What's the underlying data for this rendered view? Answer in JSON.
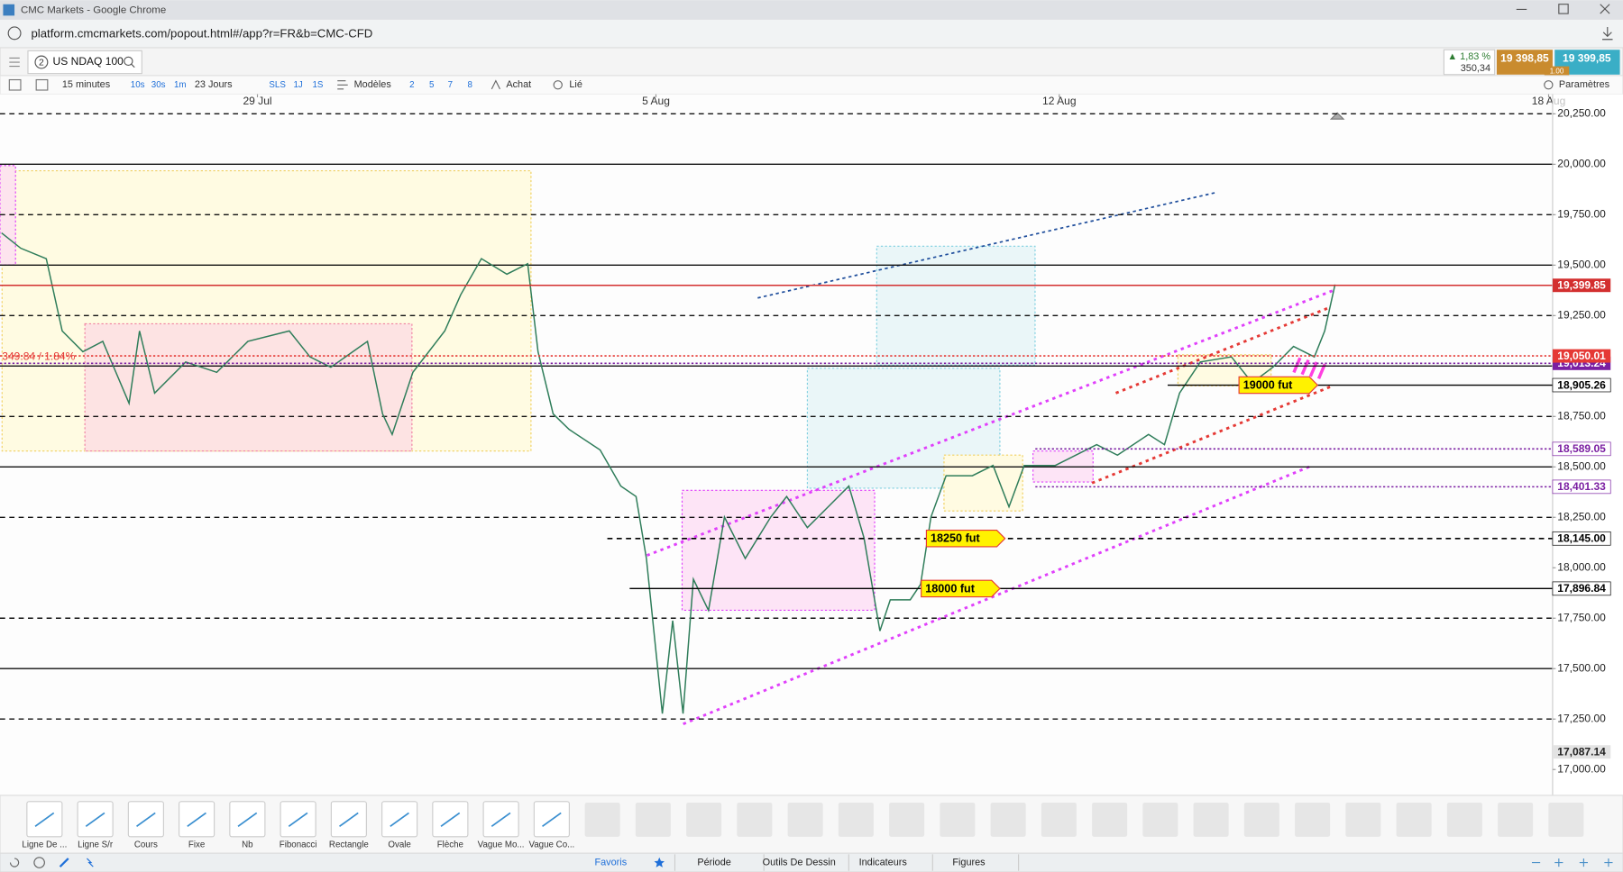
{
  "browser": {
    "title": "CMC Markets - Google Chrome",
    "url": "platform.cmcmarkets.com/popout.html#/app?r=FR&b=CMC-CFD"
  },
  "header": {
    "tab_number": "2",
    "instrument": "US NDAQ 100",
    "change_pct": "▲ 1,83 %",
    "change_abs": "350,34",
    "sell": "19 398,85",
    "buy": "19 399,85",
    "spread": "1.00"
  },
  "toolbar": {
    "interval": "15 minutes",
    "interval_options": [
      "10s",
      "30s",
      "1m"
    ],
    "range": "23 Jours",
    "range_options": [
      "SLS",
      "1J",
      "1S"
    ],
    "templates": "Modèles",
    "layouts": [
      "2",
      "5",
      "7",
      "8"
    ],
    "buy": "Achat",
    "link": "Lié",
    "settings": "Paramètres"
  },
  "chart_data": {
    "type": "line",
    "color": "#2f7d5a",
    "xlim": [
      -3.23,
      16.25
    ],
    "ylim": [
      16877,
      20342
    ],
    "xticks": [
      {
        "value": 0,
        "label": "29 Jul"
      },
      {
        "value": 5,
        "label": "5 Aug"
      },
      {
        "value": 10.06,
        "label": "12 Aug"
      },
      {
        "value": 16.2,
        "label": "18 Aug"
      }
    ],
    "yticks": [
      {
        "value": 20250,
        "label": "20,250.00"
      },
      {
        "value": 20000,
        "label": "20,000.00"
      },
      {
        "value": 19750,
        "label": "19,750.00"
      },
      {
        "value": 19500,
        "label": "19,500.00"
      },
      {
        "value": 19250,
        "label": "19,250.00"
      },
      {
        "value": 18750,
        "label": "18,750.00"
      },
      {
        "value": 18500,
        "label": "18,500.00"
      },
      {
        "value": 18250,
        "label": "18,250.00"
      },
      {
        "value": 18000,
        "label": "18,000.00"
      },
      {
        "value": 17750,
        "label": "17,750.00"
      },
      {
        "value": 17500,
        "label": "17,500.00"
      },
      {
        "value": 17250,
        "label": "17,250.00"
      },
      {
        "value": 17000,
        "label": "17,000.00"
      }
    ],
    "horizontal_lines": [
      {
        "value": 20250,
        "style": "dashed"
      },
      {
        "value": 20000,
        "style": "solid"
      },
      {
        "value": 19750,
        "style": "dashed"
      },
      {
        "value": 19500,
        "style": "solid"
      },
      {
        "value": 19250,
        "style": "dashed"
      },
      {
        "value": 19000,
        "style": "solid"
      },
      {
        "value": 18750,
        "style": "dashed"
      },
      {
        "value": 18500,
        "style": "solid"
      },
      {
        "value": 18250,
        "style": "dashed"
      },
      {
        "value": 17750,
        "style": "dashed"
      },
      {
        "value": 17500,
        "style": "solid"
      },
      {
        "value": 17250,
        "style": "dashed"
      }
    ],
    "levels": [
      {
        "value": 19399.85,
        "label": "19,399.85",
        "color": "#d32f2f",
        "style": "solid",
        "tag": "filled"
      },
      {
        "value": 19050.01,
        "label": "19,050.01",
        "color": "#e53935",
        "style": "dotted",
        "tag": "filled",
        "note": "349.84 / 1.84%"
      },
      {
        "value": 19013.24,
        "label": "19,013.24",
        "color": "#7b1fa2",
        "style": "dotted",
        "tag": "filled"
      },
      {
        "value": 18905.26,
        "label": "18,905.26",
        "color": "#000000",
        "style": "solid",
        "start": 11.42,
        "annotation": "19000 fut"
      },
      {
        "value": 18589.05,
        "label": "18,589.05",
        "color": "#7b1fa2",
        "style": "dotted",
        "start": 9.76
      },
      {
        "value": 18401.33,
        "label": "18,401.33",
        "color": "#7b1fa2",
        "style": "dotted",
        "start": 9.76
      },
      {
        "value": 18145,
        "label": "18,145.00",
        "color": "#000000",
        "style": "dashed",
        "start": 4.39,
        "annotation": "18250 fut"
      },
      {
        "value": 17896.84,
        "label": "17,896.84",
        "color": "#000000",
        "style": "solid",
        "start": 4.67,
        "annotation": "18000 fut"
      },
      {
        "value": 17087.14,
        "label": "17,087.14",
        "color": "#222222",
        "style": "none",
        "tag": "gray"
      }
    ],
    "x": [
      -3.21,
      -2.97,
      -2.65,
      -2.45,
      -2.19,
      -1.94,
      -1.61,
      -1.48,
      -1.29,
      -0.9,
      -0.51,
      -0.12,
      0.4,
      0.66,
      0.92,
      1.38,
      1.57,
      1.69,
      1.95,
      2.35,
      2.55,
      2.81,
      3.13,
      3.39,
      3.52,
      3.71,
      3.91,
      4.3,
      4.56,
      4.75,
      4.88,
      5.08,
      5.21,
      5.34,
      5.47,
      5.66,
      5.86,
      6.12,
      6.44,
      6.64,
      6.9,
      7.16,
      7.42,
      7.61,
      7.81,
      7.94,
      8.19,
      8.32,
      8.45,
      8.64,
      8.97,
      9.23,
      9.43,
      9.62,
      10.01,
      10.53,
      10.79,
      11.18,
      11.38,
      11.57,
      11.83,
      12.22,
      12.48,
      12.74,
      13.0,
      13.26,
      13.39,
      13.52
    ],
    "values": [
      19660,
      19584,
      19532,
      19174,
      19071,
      19122,
      18815,
      19174,
      18866,
      19020,
      18969,
      19122,
      19174,
      19045,
      18994,
      19122,
      18763,
      18661,
      18969,
      19174,
      19353,
      19532,
      19455,
      19507,
      19071,
      18763,
      18686,
      18584,
      18405,
      18353,
      18046,
      17277,
      17738,
      17277,
      17943,
      17789,
      18251,
      18046,
      18251,
      18353,
      18199,
      18302,
      18405,
      18148,
      17687,
      17841,
      17841,
      17918,
      18251,
      18456,
      18456,
      18507,
      18302,
      18507,
      18507,
      18610,
      18558,
      18661,
      18610,
      18866,
      19020,
      19045,
      18917,
      18994,
      19097,
      19045,
      19174,
      19404
    ]
  },
  "drawing_tools": [
    "Ligne De ...",
    "Ligne S/r",
    "Cours",
    "Fixe",
    "Nb",
    "Fibonacci",
    "Rectangle",
    "Ovale",
    "Flèche",
    "Vague Mo...",
    "Vague Co..."
  ],
  "tabs": [
    "Favoris",
    "Période",
    "Outils De Dessin",
    "Indicateurs",
    "Figures"
  ]
}
